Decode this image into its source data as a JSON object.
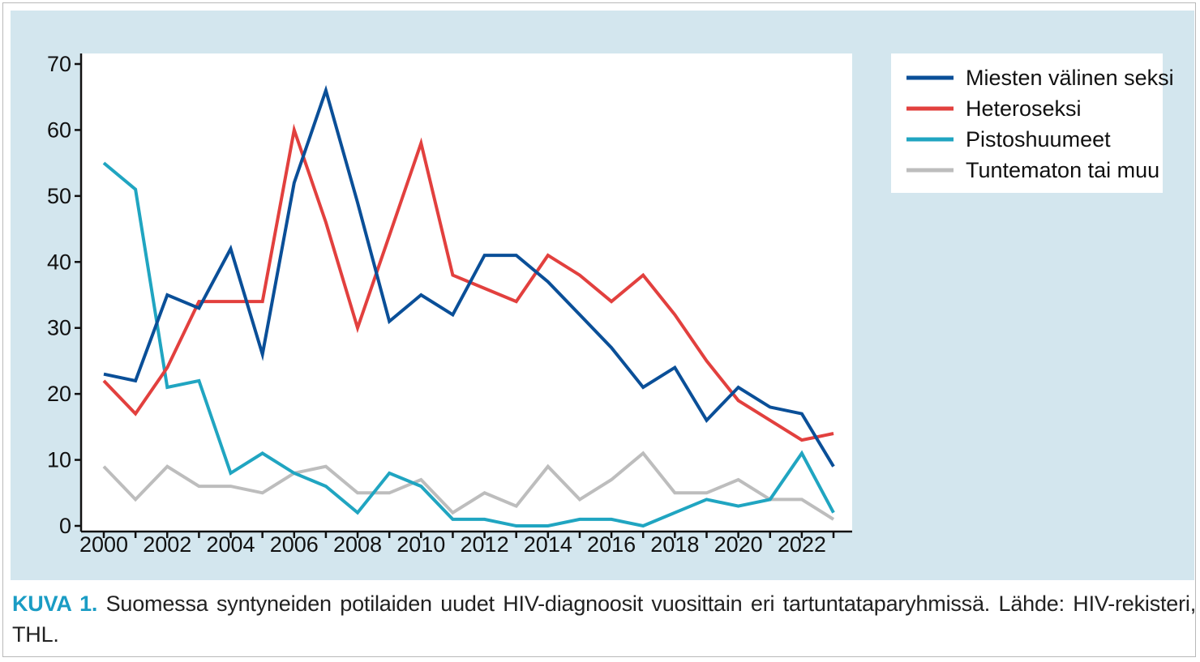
{
  "caption": {
    "label": "KUVA 1.",
    "text": " Suomessa syntyneiden potilaiden uudet HIV-diagnoosit vuosittain eri tartuntataparyhmissä. Lähde: HIV-rekisteri, THL."
  },
  "chart_data": {
    "type": "line",
    "title": "",
    "xlabel": "",
    "ylabel": "",
    "x": [
      2000,
      2001,
      2002,
      2003,
      2004,
      2005,
      2006,
      2007,
      2008,
      2009,
      2010,
      2011,
      2012,
      2013,
      2014,
      2015,
      2016,
      2017,
      2018,
      2019,
      2020,
      2021,
      2022,
      2023
    ],
    "xlim": [
      2000,
      2023
    ],
    "ylim": [
      0,
      70
    ],
    "x_tick_labels": [
      "2000",
      "2002",
      "2004",
      "2006",
      "2008",
      "2010",
      "2012",
      "2014",
      "2016",
      "2018",
      "2020",
      "2022"
    ],
    "y_tick_labels": [
      "0",
      "10",
      "20",
      "30",
      "40",
      "50",
      "60",
      "70"
    ],
    "grid": false,
    "legend_position": "top-right",
    "series": [
      {
        "name": "Miesten välinen seksi",
        "color": "#0a4f98",
        "values": [
          23,
          22,
          35,
          33,
          42,
          26,
          52,
          66,
          49,
          31,
          35,
          32,
          41,
          41,
          37,
          32,
          27,
          21,
          24,
          16,
          21,
          18,
          17,
          9
        ]
      },
      {
        "name": "Heteroseksi",
        "color": "#e2403e",
        "values": [
          22,
          17,
          24,
          34,
          34,
          34,
          60,
          46,
          30,
          44,
          58,
          38,
          36,
          34,
          41,
          38,
          34,
          38,
          32,
          25,
          19,
          16,
          13,
          14
        ]
      },
      {
        "name": "Pistoshuumeet",
        "color": "#20a5c1",
        "values": [
          55,
          51,
          21,
          22,
          8,
          11,
          8,
          6,
          2,
          8,
          6,
          1,
          1,
          0,
          0,
          1,
          1,
          0,
          2,
          4,
          3,
          4,
          11,
          2
        ]
      },
      {
        "name": "Tuntematon tai muu",
        "color": "#bdbdbd",
        "values": [
          9,
          4,
          9,
          6,
          6,
          5,
          8,
          9,
          5,
          5,
          7,
          2,
          5,
          3,
          9,
          4,
          7,
          11,
          5,
          5,
          7,
          4,
          4,
          1
        ]
      }
    ]
  }
}
